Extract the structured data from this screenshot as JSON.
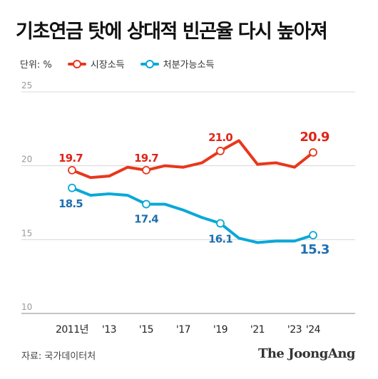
{
  "title": "기초연금 탓에 상대적 빈곤율 다시 높아져",
  "legend": {
    "unit": "단위: %",
    "series": [
      {
        "name": "시장소득",
        "color": "#e8371c"
      },
      {
        "name": "처분가능소득",
        "color": "#0aa8d8"
      }
    ]
  },
  "source": "자료: 국가데이터처",
  "brand": "The JoongAng",
  "chart_data": {
    "type": "line",
    "x": [
      2011,
      2012,
      2013,
      2014,
      2015,
      2016,
      2017,
      2018,
      2019,
      2020,
      2021,
      2022,
      2023,
      2024
    ],
    "x_tick_labels": [
      {
        "x": 2011,
        "label": "2011년"
      },
      {
        "x": 2013,
        "label": "'13"
      },
      {
        "x": 2015,
        "label": "'15"
      },
      {
        "x": 2017,
        "label": "'17"
      },
      {
        "x": 2019,
        "label": "'19"
      },
      {
        "x": 2021,
        "label": "'21"
      },
      {
        "x": 2023,
        "label": "'23"
      },
      {
        "x": 2024,
        "label": "'24"
      }
    ],
    "ylim": [
      10,
      25
    ],
    "y_ticks": [
      10,
      15,
      20,
      25
    ],
    "grid": true,
    "series": [
      {
        "name": "시장소득",
        "color": "#e8371c",
        "values": [
          19.7,
          19.2,
          19.3,
          19.9,
          19.7,
          20.0,
          19.9,
          20.2,
          21.0,
          21.7,
          20.1,
          20.2,
          19.9,
          20.9
        ],
        "labels": [
          {
            "x": 2011,
            "text": "19.7"
          },
          {
            "x": 2015,
            "text": "19.7"
          },
          {
            "x": 2019,
            "text": "21.0"
          },
          {
            "x": 2024,
            "text": "20.9"
          }
        ]
      },
      {
        "name": "처분가능소득",
        "color": "#0aa8d8",
        "values": [
          18.5,
          18.0,
          18.1,
          18.0,
          17.4,
          17.4,
          17.0,
          16.5,
          16.1,
          15.1,
          14.8,
          14.9,
          14.9,
          15.3
        ],
        "labels": [
          {
            "x": 2011,
            "text": "18.5"
          },
          {
            "x": 2015,
            "text": "17.4"
          },
          {
            "x": 2019,
            "text": "16.1"
          },
          {
            "x": 2024,
            "text": "15.3"
          }
        ]
      }
    ]
  }
}
